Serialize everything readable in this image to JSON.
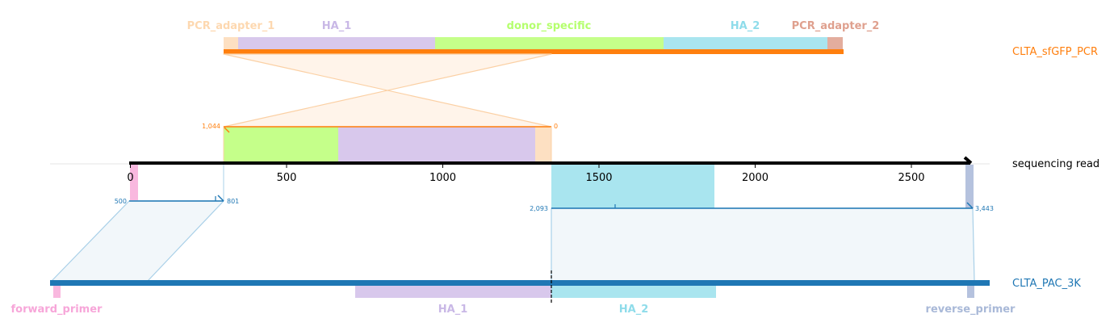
{
  "sequences": {
    "top": {
      "name": "CLTA_sfGFP_PCR",
      "color": "#ff7f0e"
    },
    "middle": {
      "name": "sequencing read",
      "color": "#000000"
    },
    "bottom": {
      "name": "CLTA_PAC_3K",
      "color": "#1f77b4"
    }
  },
  "top_features": [
    {
      "name": "PCR_adapter_1",
      "color": "#fdd8b0"
    },
    {
      "name": "HA_1",
      "color": "#c9b8e6"
    },
    {
      "name": "donor_specific",
      "color": "#b5ff6e"
    },
    {
      "name": "HA_2",
      "color": "#8fdcea"
    },
    {
      "name": "PCR_adapter_2",
      "color": "#dfa08e"
    }
  ],
  "read_axis": {
    "ticks": [
      "0",
      "500",
      "1000",
      "1500",
      "2000",
      "2500"
    ]
  },
  "alignment_top": {
    "start_label": "1,044",
    "end_label": "0"
  },
  "alignment_bottom_left": {
    "start_label": "500",
    "end_label": "801"
  },
  "alignment_bottom_right": {
    "start_label": "2,093",
    "end_label": "3,443"
  },
  "bottom_features": [
    {
      "name": "forward_primer",
      "color": "#f7a6d9"
    },
    {
      "name": "HA_1",
      "color": "#c9b8e6"
    },
    {
      "name": "HA_2",
      "color": "#8fdcea"
    },
    {
      "name": "reverse_primer",
      "color": "#a9b9d8"
    }
  ]
}
